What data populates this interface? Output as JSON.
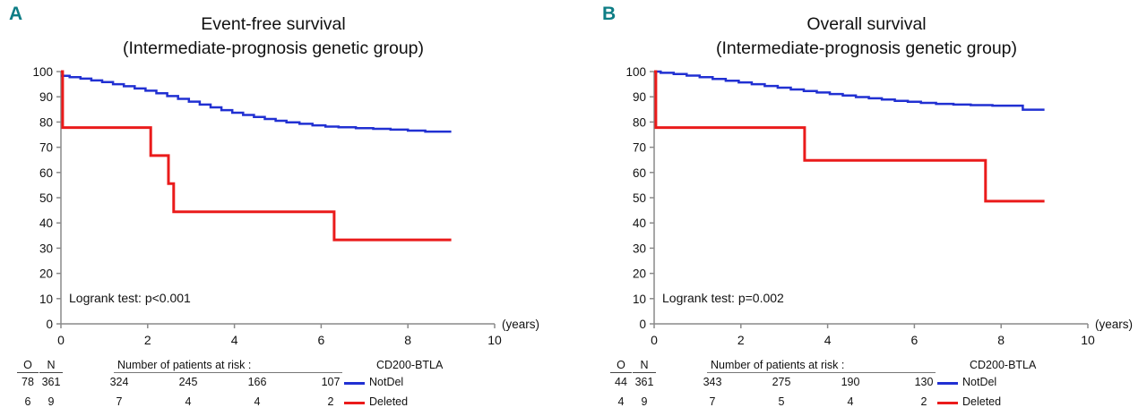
{
  "accent_teal": "#0d7d85",
  "axis_color": "#8a8a8a",
  "panels": [
    {
      "label": "A",
      "table": {
        "o_header": "O",
        "n_header": "N",
        "risk_header": "Number of patients at risk :",
        "legend_header": "CD200-BTLA",
        "rows": [
          {
            "o": "78",
            "n": "361",
            "risk": [
              "324",
              "245",
              "166",
              "107"
            ],
            "label": "NotDel",
            "color": "#2130d2"
          },
          {
            "o": "6",
            "n": "9",
            "risk": [
              "7",
              "4",
              "4",
              "2"
            ],
            "label": "Deleted",
            "color": "#ea1b1b"
          }
        ]
      }
    },
    {
      "label": "B",
      "table": {
        "o_header": "O",
        "n_header": "N",
        "risk_header": "Number of patients at risk :",
        "legend_header": "CD200-BTLA",
        "rows": [
          {
            "o": "44",
            "n": "361",
            "risk": [
              "343",
              "275",
              "190",
              "130"
            ],
            "label": "NotDel",
            "color": "#2130d2"
          },
          {
            "o": "4",
            "n": "9",
            "risk": [
              "7",
              "5",
              "4",
              "2"
            ],
            "label": "Deleted",
            "color": "#ea1b1b"
          }
        ]
      }
    }
  ],
  "chart_data": [
    {
      "type": "line",
      "step": true,
      "title": "Event-free survival",
      "subtitle": "(Intermediate-prognosis genetic group)",
      "annotation": "Logrank test: p<0.001",
      "xlabel": "(years)",
      "ylabel": "",
      "xlim": [
        0,
        10
      ],
      "ylim": [
        0,
        100
      ],
      "x_ticks": [
        0,
        2,
        4,
        6,
        8,
        10
      ],
      "y_ticks": [
        0,
        10,
        20,
        30,
        40,
        50,
        60,
        70,
        80,
        90,
        100
      ],
      "grid": false,
      "legend_position": "below-right",
      "series": [
        {
          "name": "NotDel",
          "color": "#2130d2",
          "width": 2.5,
          "points": [
            [
              0,
              98.3
            ],
            [
              0.2,
              97.8
            ],
            [
              0.45,
              97.2
            ],
            [
              0.7,
              96.5
            ],
            [
              0.95,
              95.8
            ],
            [
              1.2,
              95.0
            ],
            [
              1.45,
              94.2
            ],
            [
              1.7,
              93.3
            ],
            [
              1.95,
              92.4
            ],
            [
              2.2,
              91.4
            ],
            [
              2.45,
              90.3
            ],
            [
              2.7,
              89.2
            ],
            [
              2.95,
              88.1
            ],
            [
              3.2,
              86.9
            ],
            [
              3.45,
              85.8
            ],
            [
              3.7,
              84.7
            ],
            [
              3.95,
              83.7
            ],
            [
              4.2,
              82.8
            ],
            [
              4.45,
              82.0
            ],
            [
              4.7,
              81.2
            ],
            [
              4.95,
              80.5
            ],
            [
              5.2,
              79.9
            ],
            [
              5.5,
              79.3
            ],
            [
              5.8,
              78.7
            ],
            [
              6.1,
              78.2
            ],
            [
              6.4,
              77.9
            ],
            [
              6.8,
              77.6
            ],
            [
              7.2,
              77.3
            ],
            [
              7.6,
              77.0
            ],
            [
              8.0,
              76.6
            ],
            [
              8.4,
              76.2
            ],
            [
              9.0,
              76.2
            ]
          ]
        },
        {
          "name": "Deleted",
          "color": "#ea1b1b",
          "width": 3,
          "points": [
            [
              0,
              100
            ],
            [
              0.04,
              77.8
            ],
            [
              2.07,
              66.7
            ],
            [
              2.48,
              55.6
            ],
            [
              2.6,
              44.4
            ],
            [
              6.3,
              33.3
            ],
            [
              9.0,
              33.3
            ]
          ]
        }
      ]
    },
    {
      "type": "line",
      "step": true,
      "title": "Overall survival",
      "subtitle": "(Intermediate-prognosis genetic group)",
      "annotation": "Logrank test: p=0.002",
      "xlabel": "(years)",
      "ylabel": "",
      "xlim": [
        0,
        10
      ],
      "ylim": [
        0,
        100
      ],
      "x_ticks": [
        0,
        2,
        4,
        6,
        8,
        10
      ],
      "y_ticks": [
        0,
        10,
        20,
        30,
        40,
        50,
        60,
        70,
        80,
        90,
        100
      ],
      "grid": false,
      "legend_position": "below-right",
      "series": [
        {
          "name": "NotDel",
          "color": "#2130d2",
          "width": 2.5,
          "points": [
            [
              0,
              100
            ],
            [
              0.15,
              99.5
            ],
            [
              0.45,
              99.0
            ],
            [
              0.75,
              98.4
            ],
            [
              1.05,
              97.8
            ],
            [
              1.35,
              97.1
            ],
            [
              1.65,
              96.4
            ],
            [
              1.95,
              95.7
            ],
            [
              2.25,
              95.0
            ],
            [
              2.55,
              94.3
            ],
            [
              2.85,
              93.6
            ],
            [
              3.15,
              92.9
            ],
            [
              3.45,
              92.3
            ],
            [
              3.75,
              91.7
            ],
            [
              4.05,
              91.1
            ],
            [
              4.35,
              90.5
            ],
            [
              4.65,
              89.9
            ],
            [
              4.95,
              89.4
            ],
            [
              5.25,
              88.9
            ],
            [
              5.55,
              88.4
            ],
            [
              5.85,
              88.0
            ],
            [
              6.15,
              87.6
            ],
            [
              6.5,
              87.2
            ],
            [
              6.9,
              86.9
            ],
            [
              7.3,
              86.7
            ],
            [
              7.8,
              86.5
            ],
            [
              8.5,
              84.9
            ],
            [
              9.0,
              84.9
            ]
          ]
        },
        {
          "name": "Deleted",
          "color": "#ea1b1b",
          "width": 3,
          "points": [
            [
              0,
              100
            ],
            [
              0.04,
              77.8
            ],
            [
              3.47,
              64.8
            ],
            [
              7.64,
              48.6
            ],
            [
              9.0,
              48.6
            ]
          ]
        }
      ]
    }
  ]
}
